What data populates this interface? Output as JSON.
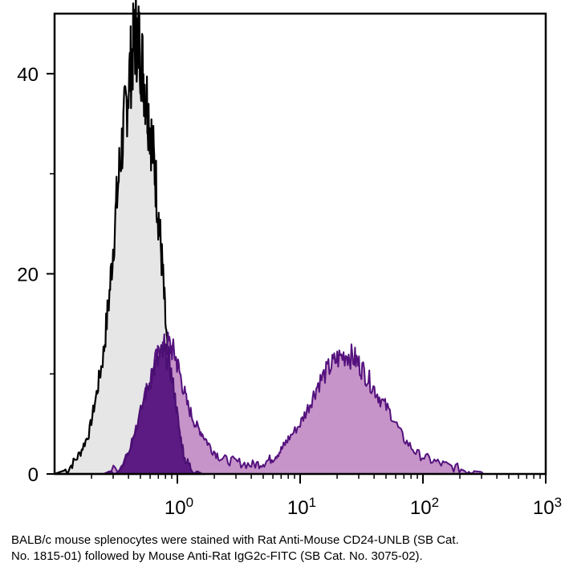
{
  "chart_data": {
    "type": "area",
    "x_scale": "log",
    "xlim": [
      0.1,
      1000
    ],
    "ylim": [
      0,
      46
    ],
    "x_ticks": [
      {
        "value": 1,
        "base": "10",
        "exp": "0"
      },
      {
        "value": 10,
        "base": "10",
        "exp": "1"
      },
      {
        "value": 100,
        "base": "10",
        "exp": "2"
      },
      {
        "value": 1000,
        "base": "10",
        "exp": "3"
      }
    ],
    "y_ticks": [
      {
        "value": 0,
        "label": "0"
      },
      {
        "value": 20,
        "label": "20"
      },
      {
        "value": 40,
        "label": "40"
      }
    ],
    "grid": false,
    "series": [
      {
        "fill": "#e6e6e6",
        "stroke": "#000000",
        "points": [
          [
            0.1,
            0
          ],
          [
            0.13,
            0.5
          ],
          [
            0.16,
            2
          ],
          [
            0.19,
            4
          ],
          [
            0.22,
            8
          ],
          [
            0.25,
            12
          ],
          [
            0.28,
            18
          ],
          [
            0.31,
            25
          ],
          [
            0.34,
            31
          ],
          [
            0.37,
            35
          ],
          [
            0.4,
            39
          ],
          [
            0.43,
            42
          ],
          [
            0.46,
            44
          ],
          [
            0.49,
            43
          ],
          [
            0.53,
            40
          ],
          [
            0.57,
            37
          ],
          [
            0.61,
            34
          ],
          [
            0.66,
            30
          ],
          [
            0.71,
            25
          ],
          [
            0.76,
            20
          ],
          [
            0.82,
            13
          ],
          [
            0.88,
            8
          ],
          [
            0.95,
            4
          ],
          [
            1.05,
            2
          ],
          [
            1.2,
            0.8
          ],
          [
            1.4,
            0.3
          ],
          [
            1.7,
            0
          ]
        ]
      },
      {
        "fill": "#c694c8",
        "stroke": "#55127e",
        "points": [
          [
            0.25,
            0
          ],
          [
            0.35,
            0.8
          ],
          [
            0.45,
            4
          ],
          [
            0.55,
            8
          ],
          [
            0.65,
            11
          ],
          [
            0.75,
            12.5
          ],
          [
            0.85,
            13
          ],
          [
            0.95,
            12
          ],
          [
            1.05,
            10
          ],
          [
            1.2,
            7
          ],
          [
            1.4,
            5
          ],
          [
            1.6,
            4
          ],
          [
            1.9,
            2.5
          ],
          [
            2.3,
            1.5
          ],
          [
            3,
            1.2
          ],
          [
            4,
            0.9
          ],
          [
            5,
            1.1
          ],
          [
            6,
            1.6
          ],
          [
            7,
            2.4
          ],
          [
            8,
            3.5
          ],
          [
            10,
            5
          ],
          [
            12,
            7
          ],
          [
            14,
            9
          ],
          [
            17,
            10.5
          ],
          [
            20,
            11.5
          ],
          [
            24,
            12
          ],
          [
            28,
            11.5
          ],
          [
            32,
            10.5
          ],
          [
            38,
            9
          ],
          [
            45,
            7.5
          ],
          [
            55,
            6
          ],
          [
            70,
            3.5
          ],
          [
            90,
            2
          ],
          [
            120,
            1.3
          ],
          [
            160,
            0.8
          ],
          [
            220,
            0.4
          ],
          [
            300,
            0.2
          ],
          [
            310,
            0
          ]
        ]
      },
      {
        "fill": "#5c1b82",
        "stroke": "#4a0f72",
        "points": [
          [
            0.25,
            0
          ],
          [
            0.35,
            0.6
          ],
          [
            0.45,
            4
          ],
          [
            0.55,
            8
          ],
          [
            0.65,
            10.5
          ],
          [
            0.75,
            12
          ],
          [
            0.85,
            11.5
          ],
          [
            0.95,
            8
          ],
          [
            1.05,
            4
          ],
          [
            1.15,
            1.5
          ],
          [
            1.3,
            0.6
          ],
          [
            1.6,
            0
          ]
        ]
      }
    ]
  },
  "caption": "BALB/c mouse splenocytes were stained with Rat Anti-Mouse CD24-UNLB (SB Cat.\nNo. 1815-01) followed by Mouse Anti-Rat IgG2c-FITC (SB Cat. No. 3075-02)."
}
